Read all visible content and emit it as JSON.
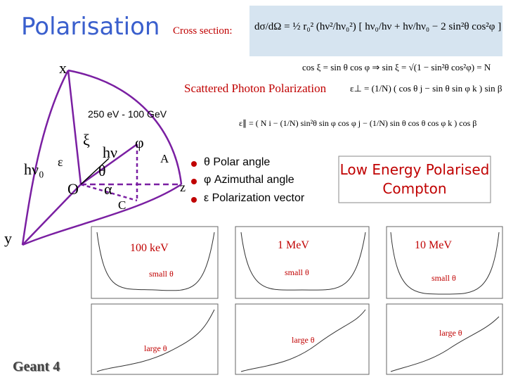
{
  "title": "Polarisation",
  "cross_section": {
    "label": "Cross section:",
    "formula": "dσ/dΩ = ½ r₀² (hν²/hν₀²) [ hν₀/hν + hν/hν₀ − 2 sin²θ cos²φ ]"
  },
  "formulas": [
    "cos ξ = sin θ cos φ  ⇒  sin ξ = √(1 − sin²θ cos²φ) = N",
    "ε⊥ = (1/N) ( cos θ j − sin θ sin φ k ) sin β",
    "ε∥ = ( N i − (1/N) sin²θ sin φ cos φ j − (1/N) sin θ cos θ cos φ k ) cos β"
  ],
  "scattered_label": "Scattered Photon Polarization",
  "energy_range": "250 eV - 100 GeV",
  "diagram": {
    "x": "x",
    "y": "y",
    "z": "z",
    "hv0": "hν₀",
    "epsilon": "ε",
    "xi": "ξ",
    "hv": "hν",
    "phi": "φ",
    "A": "A",
    "theta": "θ",
    "O": "O",
    "alpha": "α",
    "C": "C"
  },
  "bullets": [
    "θ Polar angle",
    "φ Azimuthal angle",
    "ε Polarization vector"
  ],
  "headline": "Low Energy Polarised Compton",
  "plots": [
    {
      "energy": "100 keV",
      "small": "small θ",
      "large": "large θ"
    },
    {
      "energy": "1 MeV",
      "small": "small θ",
      "large": "large θ"
    },
    {
      "energy": "10 MeV",
      "small": "small θ",
      "large": "large θ"
    }
  ],
  "footer": "Geant 4"
}
